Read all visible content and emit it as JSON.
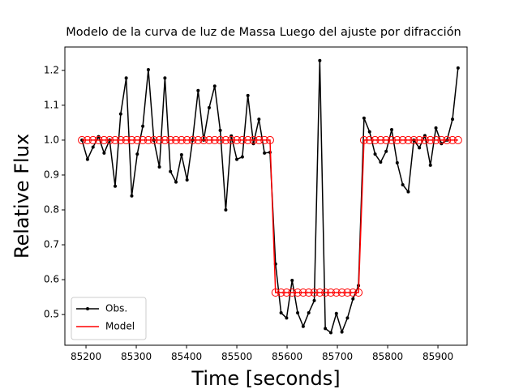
{
  "chart_data": {
    "type": "line",
    "title": "Modelo de la curva de luz de Massa Luego del ajuste por difracción",
    "x_label": "Time [seconds]",
    "y_label": "Relative Flux",
    "x": [
      85192,
      85203,
      85214,
      85225,
      85236,
      85247,
      85258,
      85269,
      85280,
      85291,
      85302,
      85313,
      85324,
      85335,
      85346,
      85357,
      85368,
      85379,
      85390,
      85401,
      85412,
      85423,
      85434,
      85445,
      85456,
      85467,
      85478,
      85489,
      85500,
      85511,
      85522,
      85533,
      85544,
      85555,
      85566,
      85577,
      85588,
      85599,
      85610,
      85621,
      85632,
      85643,
      85654,
      85665,
      85676,
      85687,
      85698,
      85709,
      85720,
      85731,
      85742,
      85753,
      85764,
      85775,
      85786,
      85797,
      85808,
      85819,
      85830,
      85841,
      85852,
      85863,
      85874,
      85885,
      85896,
      85907,
      85918,
      85929,
      85940
    ],
    "series": [
      {
        "name": "Obs.",
        "color": "#000000",
        "marker": "dot",
        "values": [
          1.0,
          0.945,
          0.98,
          1.01,
          0.963,
          1.0,
          0.868,
          1.075,
          1.178,
          0.84,
          0.96,
          1.04,
          1.202,
          1.0,
          0.923,
          1.178,
          0.91,
          0.88,
          0.958,
          0.886,
          1.0,
          1.142,
          1.0,
          1.093,
          1.155,
          1.028,
          0.8,
          1.012,
          0.945,
          0.952,
          1.128,
          0.99,
          1.06,
          0.963,
          0.965,
          0.645,
          0.505,
          0.49,
          0.598,
          0.505,
          0.466,
          0.505,
          0.54,
          1.228,
          0.46,
          0.448,
          0.503,
          0.45,
          0.49,
          0.545,
          0.583,
          1.063,
          1.024,
          0.96,
          0.937,
          0.968,
          1.03,
          0.935,
          0.872,
          0.852,
          1.0,
          0.978,
          1.013,
          0.928,
          1.035,
          0.99,
          1.0,
          1.06,
          1.207
        ]
      },
      {
        "name": "Model",
        "color": "#ff0000",
        "marker": "circle",
        "values": [
          1.0,
          1.0,
          1.0,
          1.0,
          1.0,
          1.0,
          1.0,
          1.0,
          1.0,
          1.0,
          1.0,
          1.0,
          1.0,
          1.0,
          1.0,
          1.0,
          1.0,
          1.0,
          1.0,
          1.0,
          1.0,
          1.0,
          1.0,
          1.0,
          1.0,
          1.0,
          1.0,
          1.0,
          1.0,
          1.0,
          1.0,
          1.0,
          1.0,
          1.0,
          1.0,
          0.563,
          0.563,
          0.563,
          0.563,
          0.563,
          0.563,
          0.563,
          0.563,
          0.563,
          0.563,
          0.563,
          0.563,
          0.563,
          0.563,
          0.563,
          0.563,
          1.0,
          1.0,
          1.0,
          1.0,
          1.0,
          1.0,
          1.0,
          1.0,
          1.0,
          1.0,
          1.0,
          1.0,
          1.0,
          1.0,
          1.0,
          1.0,
          1.0,
          1.0
        ]
      }
    ],
    "xlim": [
      85158,
      85958
    ],
    "ylim": [
      0.412,
      1.267
    ],
    "xticks": [
      85200,
      85300,
      85400,
      85500,
      85600,
      85700,
      85800,
      85900
    ],
    "yticks": [
      0.5,
      0.6,
      0.7,
      0.8,
      0.9,
      {
        "value": 1,
        "label": "1.0"
      },
      1.1,
      1.2
    ],
    "legend": "lower left"
  }
}
